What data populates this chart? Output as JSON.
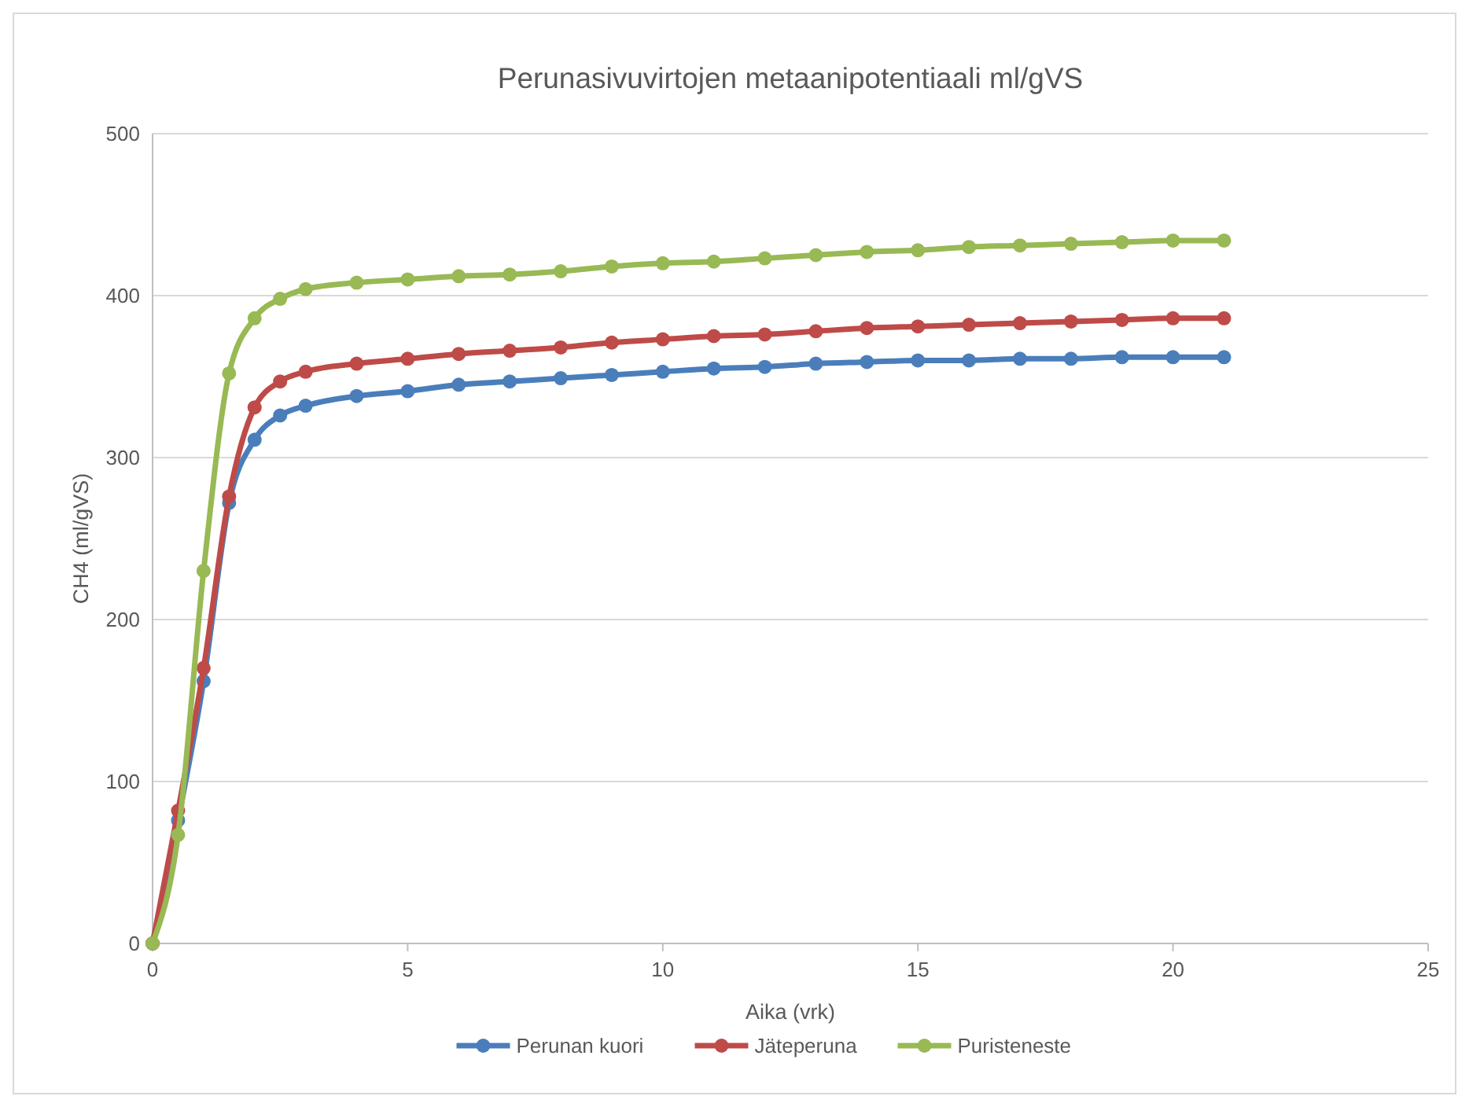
{
  "chart_data": {
    "type": "line",
    "title": "Perunasivuvirtojen metaanipotentiaali ml/gVS",
    "xlabel": "Aika (vrk)",
    "ylabel": "CH4 (ml/gVS)",
    "x": [
      0,
      0.5,
      1,
      1.5,
      2,
      2.5,
      3,
      4,
      5,
      6,
      7,
      8,
      9,
      10,
      11,
      12,
      13,
      14,
      15,
      16,
      17,
      18,
      19,
      20,
      21
    ],
    "series": [
      {
        "name": "Perunan kuori",
        "color": "#4a7ebb",
        "values": [
          0,
          76,
          162,
          272,
          311,
          326,
          332,
          338,
          341,
          345,
          347,
          349,
          351,
          353,
          355,
          356,
          358,
          359,
          360,
          360,
          361,
          361,
          362,
          362,
          362
        ]
      },
      {
        "name": "Jäteperuna",
        "color": "#be4b48",
        "values": [
          0,
          82,
          170,
          276,
          331,
          347,
          353,
          358,
          361,
          364,
          366,
          368,
          371,
          373,
          375,
          376,
          378,
          380,
          381,
          382,
          383,
          384,
          385,
          386,
          386
        ]
      },
      {
        "name": "Puristeneste",
        "color": "#98b954",
        "values": [
          0,
          67,
          230,
          352,
          386,
          398,
          404,
          408,
          410,
          412,
          413,
          415,
          418,
          420,
          421,
          423,
          425,
          427,
          428,
          430,
          431,
          432,
          433,
          434,
          434
        ]
      }
    ],
    "xlim": [
      0,
      25
    ],
    "xticks": [
      0,
      5,
      10,
      15,
      20,
      25
    ],
    "ylim": [
      0,
      500
    ],
    "yticks": [
      0,
      100,
      200,
      300,
      400,
      500
    ],
    "grid": "y",
    "legend": "bottom",
    "marker": "circle",
    "line_style": "solid"
  }
}
